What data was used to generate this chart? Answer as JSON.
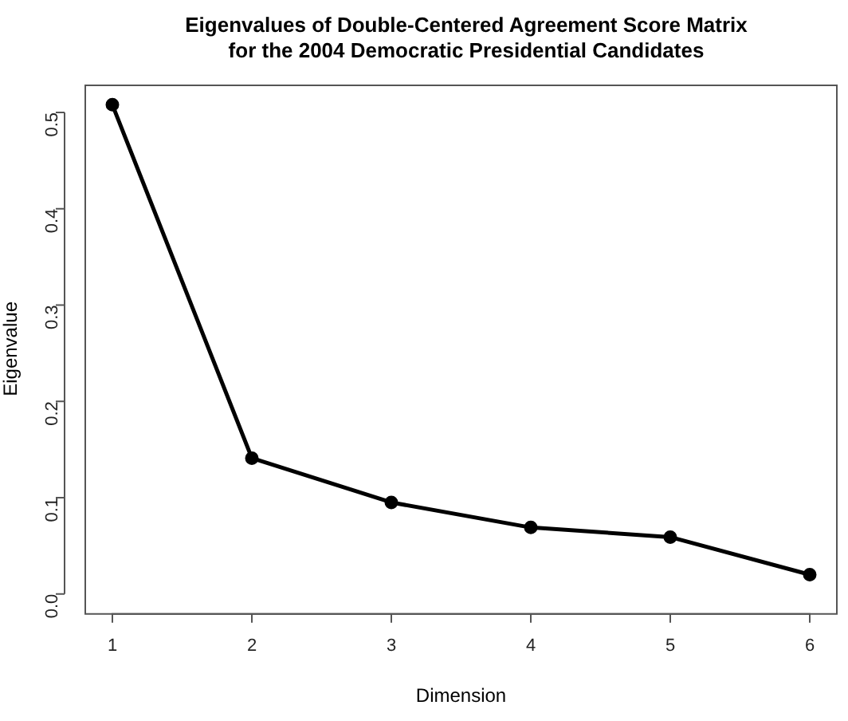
{
  "chart_data": {
    "type": "line",
    "title": "Eigenvalues of Double-Centered Agreement Score Matrix\nfor the 2004 Democratic Presidential Candidates",
    "xlabel": "Dimension",
    "ylabel": "Eigenvalue",
    "x": [
      1,
      2,
      3,
      4,
      5,
      6
    ],
    "series": [
      {
        "color": "#000000",
        "values": [
          0.508,
          0.141,
          0.095,
          0.069,
          0.059,
          0.02
        ]
      }
    ],
    "xlim": [
      0.8,
      6.2
    ],
    "xticks": [
      1,
      2,
      3,
      4,
      5,
      6
    ],
    "ylim": [
      -0.02,
      0.529
    ],
    "yticks": [
      {
        "value": 0,
        "label": "0.0"
      },
      0.1,
      0.2,
      0.3,
      0.4,
      0.5
    ],
    "grid": false,
    "legend": false,
    "marker": "circle",
    "line_style": "solid"
  }
}
